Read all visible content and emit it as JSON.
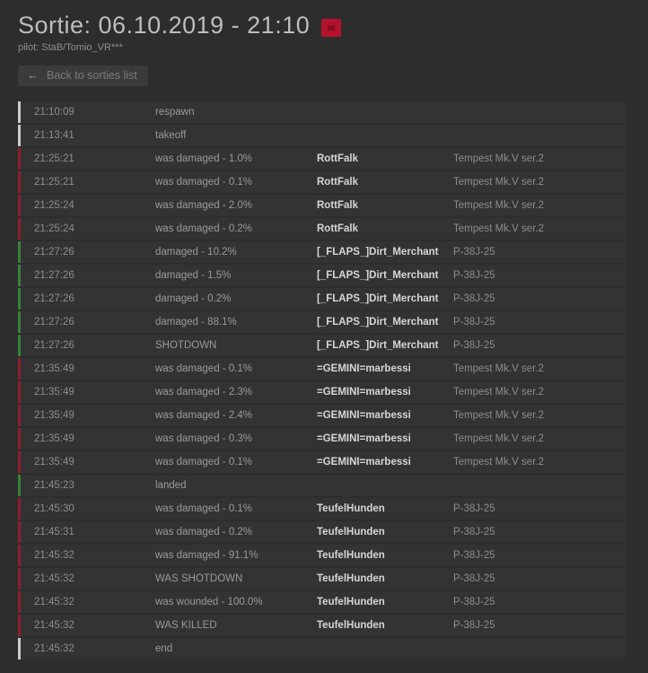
{
  "header": {
    "title": "Sortie: 06.10.2019 - 21:10",
    "death_badge_icon": "skull-crossbones",
    "pilot_label": "pilot: StaB/Tomio_VR***",
    "back_button": "Back to sorties list"
  },
  "colors": {
    "page_bg": "#2d2d2d",
    "row_bg": "#333333",
    "accent_red": "#b5122e",
    "bar_red": "#8e1f2d",
    "bar_green": "#37833c",
    "bar_neutral": "#cccccc"
  },
  "log": {
    "columns": [
      "time",
      "event",
      "enemy_player",
      "enemy_aircraft"
    ],
    "rows": [
      {
        "time": "21:10:09",
        "event": "respawn",
        "name": "",
        "aircraft": "",
        "type": "neutral"
      },
      {
        "time": "21:13:41",
        "event": "takeoff",
        "name": "",
        "aircraft": "",
        "type": "neutral"
      },
      {
        "time": "21:25:21",
        "event": "was damaged - 1.0%",
        "name": "RottFalk",
        "aircraft": "Tempest Mk.V ser.2",
        "type": "bad"
      },
      {
        "time": "21:25:21",
        "event": "was damaged - 0.1%",
        "name": "RottFalk",
        "aircraft": "Tempest Mk.V ser.2",
        "type": "bad"
      },
      {
        "time": "21:25:24",
        "event": "was damaged - 2.0%",
        "name": "RottFalk",
        "aircraft": "Tempest Mk.V ser.2",
        "type": "bad"
      },
      {
        "time": "21:25:24",
        "event": "was damaged - 0.2%",
        "name": "RottFalk",
        "aircraft": "Tempest Mk.V ser.2",
        "type": "bad"
      },
      {
        "time": "21:27:26",
        "event": "damaged - 10.2%",
        "name": "[_FLAPS_]Dirt_Merchant",
        "aircraft": "P-38J-25",
        "type": "good"
      },
      {
        "time": "21:27:26",
        "event": "damaged - 1.5%",
        "name": "[_FLAPS_]Dirt_Merchant",
        "aircraft": "P-38J-25",
        "type": "good"
      },
      {
        "time": "21:27:26",
        "event": "damaged - 0.2%",
        "name": "[_FLAPS_]Dirt_Merchant",
        "aircraft": "P-38J-25",
        "type": "good"
      },
      {
        "time": "21:27:26",
        "event": "damaged - 88.1%",
        "name": "[_FLAPS_]Dirt_Merchant",
        "aircraft": "P-38J-25",
        "type": "good"
      },
      {
        "time": "21:27:26",
        "event": "SHOTDOWN",
        "name": "[_FLAPS_]Dirt_Merchant",
        "aircraft": "P-38J-25",
        "type": "good"
      },
      {
        "time": "21:35:49",
        "event": "was damaged - 0.1%",
        "name": "=GEMINI=marbessi",
        "aircraft": "Tempest Mk.V ser.2",
        "type": "bad"
      },
      {
        "time": "21:35:49",
        "event": "was damaged - 2.3%",
        "name": "=GEMINI=marbessi",
        "aircraft": "Tempest Mk.V ser.2",
        "type": "bad"
      },
      {
        "time": "21:35:49",
        "event": "was damaged - 2.4%",
        "name": "=GEMINI=marbessi",
        "aircraft": "Tempest Mk.V ser.2",
        "type": "bad"
      },
      {
        "time": "21:35:49",
        "event": "was damaged - 0.3%",
        "name": "=GEMINI=marbessi",
        "aircraft": "Tempest Mk.V ser.2",
        "type": "bad"
      },
      {
        "time": "21:35:49",
        "event": "was damaged - 0.1%",
        "name": "=GEMINI=marbessi",
        "aircraft": "Tempest Mk.V ser.2",
        "type": "bad"
      },
      {
        "time": "21:45:23",
        "event": "landed",
        "name": "",
        "aircraft": "",
        "type": "good"
      },
      {
        "time": "21:45:30",
        "event": "was damaged - 0.1%",
        "name": "TeufelHunden",
        "aircraft": "P-38J-25",
        "type": "bad"
      },
      {
        "time": "21:45:31",
        "event": "was damaged - 0.2%",
        "name": "TeufelHunden",
        "aircraft": "P-38J-25",
        "type": "bad"
      },
      {
        "time": "21:45:32",
        "event": "was damaged - 91.1%",
        "name": "TeufelHunden",
        "aircraft": "P-38J-25",
        "type": "bad"
      },
      {
        "time": "21:45:32",
        "event": "WAS SHOTDOWN",
        "name": "TeufelHunden",
        "aircraft": "P-38J-25",
        "type": "bad"
      },
      {
        "time": "21:45:32",
        "event": "was wounded - 100.0%",
        "name": "TeufelHunden",
        "aircraft": "P-38J-25",
        "type": "bad"
      },
      {
        "time": "21:45:32",
        "event": "WAS KILLED",
        "name": "TeufelHunden",
        "aircraft": "P-38J-25",
        "type": "bad"
      },
      {
        "time": "21:45:32",
        "event": "end",
        "name": "",
        "aircraft": "",
        "type": "neutral"
      }
    ]
  }
}
